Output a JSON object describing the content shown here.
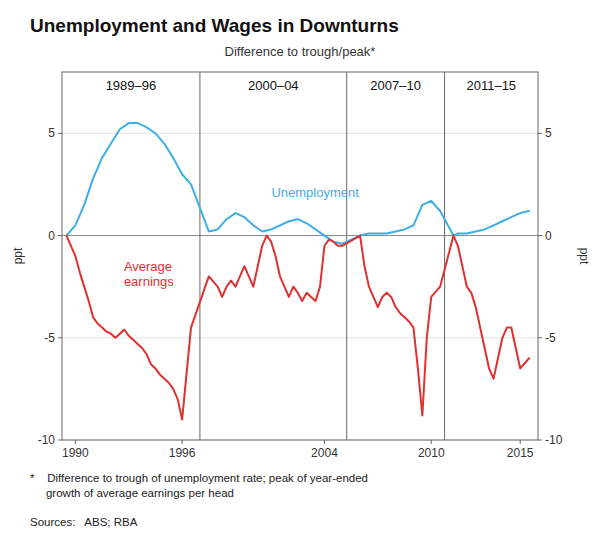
{
  "chart_data": {
    "type": "line",
    "title": "Unemployment and Wages in Downturns",
    "subtitle": "Difference to trough/peak*",
    "y_label": "ppt",
    "y2_label": "ppt",
    "footnote": "*    Difference to trough of unemployment rate; peak of year-ended\n     growth of average earnings per head",
    "sources": "Sources:   ABS; RBA",
    "annotations": [
      "1989–96",
      "2000–04",
      "2007–10",
      "2011–15"
    ],
    "dividers": [
      1997.0,
      2005.25,
      2010.75
    ],
    "xlim": [
      1989.25,
      2016.0
    ],
    "xticks": [
      1990,
      1996,
      2004,
      2010,
      2015
    ],
    "ylim": [
      -10,
      8
    ],
    "yticks": [
      -10,
      -5,
      0,
      5
    ],
    "y2lim": [
      -10,
      8
    ],
    "y2ticks": [
      -10,
      -5,
      0,
      5
    ],
    "grid": true,
    "series": [
      {
        "name": "Unemployment",
        "color": "#3daee9",
        "x": [
          1989.5,
          1990.0,
          1990.5,
          1991.0,
          1991.5,
          1992.0,
          1992.5,
          1993.0,
          1993.5,
          1994.0,
          1994.5,
          1995.0,
          1995.5,
          1996.0,
          1996.5,
          1997.5,
          1998.0,
          1998.5,
          1999.0,
          1999.5,
          2000.0,
          2000.5,
          2001.0,
          2001.5,
          2002.0,
          2002.5,
          2003.0,
          2003.5,
          2004.0,
          2004.5,
          2005.0,
          2006.0,
          2006.5,
          2007.0,
          2007.5,
          2008.0,
          2008.5,
          2009.0,
          2009.5,
          2010.0,
          2010.5,
          2011.25,
          2011.5,
          2012.0,
          2012.5,
          2013.0,
          2013.5,
          2014.0,
          2014.5,
          2015.0,
          2015.5
        ],
        "values": [
          0.0,
          0.5,
          1.5,
          2.8,
          3.8,
          4.5,
          5.2,
          5.5,
          5.5,
          5.3,
          5.0,
          4.5,
          3.8,
          3.0,
          2.5,
          0.2,
          0.3,
          0.8,
          1.1,
          0.9,
          0.5,
          0.2,
          0.3,
          0.5,
          0.7,
          0.8,
          0.6,
          0.3,
          0.0,
          -0.3,
          -0.4,
          0.0,
          0.1,
          0.1,
          0.1,
          0.2,
          0.3,
          0.5,
          1.5,
          1.7,
          1.2,
          0.0,
          0.1,
          0.1,
          0.2,
          0.3,
          0.5,
          0.7,
          0.9,
          1.1,
          1.2
        ]
      },
      {
        "name": "Average\nearnings",
        "color": "#e03030",
        "x": [
          1989.5,
          1990.0,
          1990.25,
          1990.5,
          1990.75,
          1991.0,
          1991.25,
          1991.5,
          1991.75,
          1992.0,
          1992.25,
          1992.5,
          1992.75,
          1993.0,
          1993.25,
          1993.5,
          1993.75,
          1994.0,
          1994.25,
          1994.5,
          1994.75,
          1995.0,
          1995.25,
          1995.5,
          1995.75,
          1996.0,
          1996.5,
          1997.5,
          1998.0,
          1998.25,
          1998.5,
          1998.75,
          1999.0,
          1999.25,
          1999.5,
          1999.75,
          2000.0,
          2000.25,
          2000.5,
          2000.75,
          2001.0,
          2001.25,
          2001.5,
          2001.75,
          2002.0,
          2002.25,
          2002.5,
          2002.75,
          2003.0,
          2003.25,
          2003.5,
          2003.75,
          2004.0,
          2004.25,
          2004.5,
          2004.75,
          2005.0,
          2006.0,
          2006.25,
          2006.5,
          2006.75,
          2007.0,
          2007.25,
          2007.5,
          2007.75,
          2008.0,
          2008.25,
          2008.5,
          2008.75,
          2009.0,
          2009.25,
          2009.5,
          2009.75,
          2010.0,
          2010.5,
          2011.25,
          2011.5,
          2011.75,
          2012.0,
          2012.25,
          2012.5,
          2012.75,
          2013.0,
          2013.25,
          2013.5,
          2013.75,
          2014.0,
          2014.25,
          2014.5,
          2014.75,
          2015.0,
          2015.5
        ],
        "values": [
          0.0,
          -1.0,
          -1.8,
          -2.5,
          -3.2,
          -4.0,
          -4.3,
          -4.5,
          -4.7,
          -4.8,
          -5.0,
          -4.8,
          -4.6,
          -4.9,
          -5.1,
          -5.3,
          -5.5,
          -5.8,
          -6.3,
          -6.5,
          -6.8,
          -7.0,
          -7.2,
          -7.5,
          -8.0,
          -9.0,
          -4.5,
          -2.0,
          -2.5,
          -3.0,
          -2.5,
          -2.2,
          -2.5,
          -2.0,
          -1.5,
          -2.0,
          -2.5,
          -1.5,
          -0.5,
          0.0,
          -0.3,
          -1.0,
          -2.0,
          -2.5,
          -3.0,
          -2.5,
          -2.8,
          -3.2,
          -2.8,
          -3.0,
          -3.2,
          -2.5,
          -0.5,
          -0.2,
          -0.3,
          -0.5,
          -0.5,
          0.0,
          -1.5,
          -2.5,
          -3.0,
          -3.5,
          -3.0,
          -2.8,
          -3.0,
          -3.5,
          -3.8,
          -4.0,
          -4.2,
          -4.5,
          -6.5,
          -8.8,
          -5.0,
          -3.0,
          -2.5,
          0.0,
          -0.5,
          -1.5,
          -2.5,
          -2.8,
          -3.5,
          -4.5,
          -5.5,
          -6.5,
          -7.0,
          -6.0,
          -5.0,
          -4.5,
          -4.5,
          -5.5,
          -6.5,
          -6.0
        ]
      }
    ]
  }
}
